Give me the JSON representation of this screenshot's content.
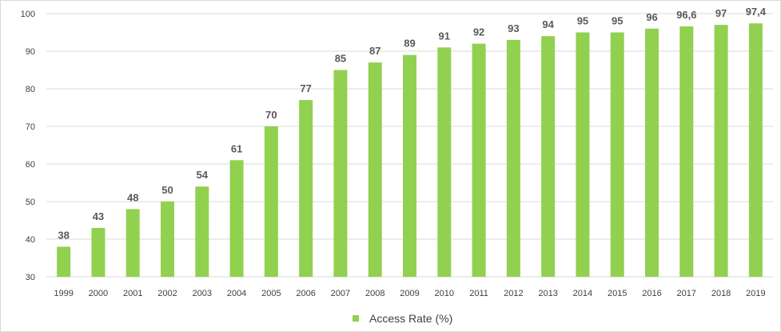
{
  "chart_data": {
    "type": "bar",
    "title": "",
    "xlabel": "",
    "ylabel": "",
    "categories": [
      "1999",
      "2000",
      "2001",
      "2002",
      "2003",
      "2004",
      "2005",
      "2006",
      "2007",
      "2008",
      "2009",
      "2010",
      "2011",
      "2012",
      "2013",
      "2014",
      "2015",
      "2016",
      "2017",
      "2018",
      "2019"
    ],
    "series": [
      {
        "name": "Access Rate (%)",
        "color": "#92d050",
        "values": [
          38,
          43,
          48,
          50,
          54,
          61,
          70,
          77,
          85,
          87,
          89,
          91,
          92,
          93,
          94,
          95,
          95,
          96,
          96.6,
          97,
          97.4
        ],
        "labels": [
          "38",
          "43",
          "48",
          "50",
          "54",
          "61",
          "70",
          "77",
          "85",
          "87",
          "89",
          "91",
          "92",
          "93",
          "94",
          "95",
          "95",
          "96",
          "96,6",
          "97",
          "97,4"
        ]
      }
    ],
    "ylim": [
      30,
      100
    ],
    "yticks": [
      "30",
      "40",
      "50",
      "60",
      "70",
      "80",
      "90",
      "100"
    ],
    "grid": true,
    "legend_position": "bottom"
  }
}
